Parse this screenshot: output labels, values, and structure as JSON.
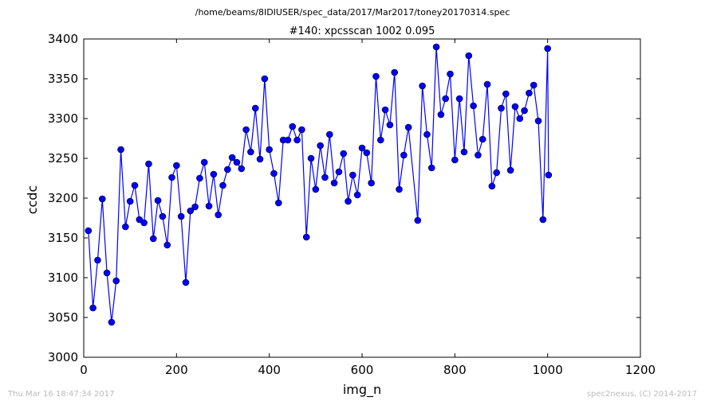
{
  "page": {
    "filepath": "/home/beams/8IDIUSER/spec_data/2017/Mar2017/toney20170314.spec",
    "timestamp": "Thu Mar 16 18:47:34 2017",
    "credit": "spec2nexus, (C) 2014-2017"
  },
  "chart_data": {
    "type": "line",
    "title": "#140: xpcsscan 1002 0.095",
    "xlabel": "img_n",
    "ylabel": "ccdc",
    "xlim": [
      0,
      1200
    ],
    "ylim": [
      3000,
      3400
    ],
    "xticks": [
      0,
      200,
      400,
      600,
      800,
      1000,
      1200
    ],
    "yticks": [
      3000,
      3050,
      3100,
      3150,
      3200,
      3250,
      3300,
      3350,
      3400
    ],
    "grid": false,
    "marker": "circle",
    "color": "#0000ff",
    "series": [
      {
        "name": "",
        "x": [
          10,
          20,
          30,
          40,
          50,
          60,
          70,
          80,
          90,
          100,
          110,
          120,
          130,
          140,
          150,
          160,
          170,
          180,
          190,
          200,
          210,
          220,
          230,
          240,
          250,
          260,
          270,
          280,
          290,
          300,
          310,
          320,
          330,
          340,
          350,
          360,
          370,
          380,
          390,
          400,
          410,
          420,
          430,
          440,
          450,
          460,
          470,
          480,
          490,
          500,
          510,
          520,
          530,
          540,
          550,
          560,
          570,
          580,
          590,
          600,
          610,
          620,
          630,
          640,
          650,
          660,
          670,
          680,
          690,
          700,
          720,
          730,
          740,
          750,
          760,
          770,
          780,
          790,
          800,
          810,
          820,
          830,
          840,
          850,
          860,
          870,
          880,
          890,
          900,
          910,
          920,
          930,
          940,
          950,
          960,
          970,
          980,
          990,
          1000,
          1002
        ],
        "y": [
          3159,
          3062,
          3122,
          3199,
          3106,
          3044,
          3096,
          3261,
          3164,
          3196,
          3216,
          3173,
          3169,
          3243,
          3149,
          3197,
          3177,
          3141,
          3226,
          3241,
          3177,
          3094,
          3184,
          3189,
          3225,
          3245,
          3190,
          3230,
          3179,
          3216,
          3236,
          3251,
          3245,
          3237,
          3286,
          3258,
          3313,
          3249,
          3350,
          3261,
          3231,
          3194,
          3273,
          3273,
          3290,
          3273,
          3286,
          3151,
          3250,
          3211,
          3266,
          3226,
          3280,
          3219,
          3233,
          3256,
          3196,
          3229,
          3204,
          3263,
          3257,
          3219,
          3353,
          3273,
          3311,
          3292,
          3358,
          3211,
          3254,
          3289,
          3172,
          3341,
          3280,
          3238,
          3390,
          3305,
          3325,
          3356,
          3248,
          3325,
          3258,
          3379,
          3316,
          3254,
          3274,
          3343,
          3215,
          3232,
          3313,
          3331,
          3235,
          3315,
          3300,
          3310,
          3332,
          3342,
          3297,
          3173,
          3388,
          3229
        ]
      }
    ]
  }
}
